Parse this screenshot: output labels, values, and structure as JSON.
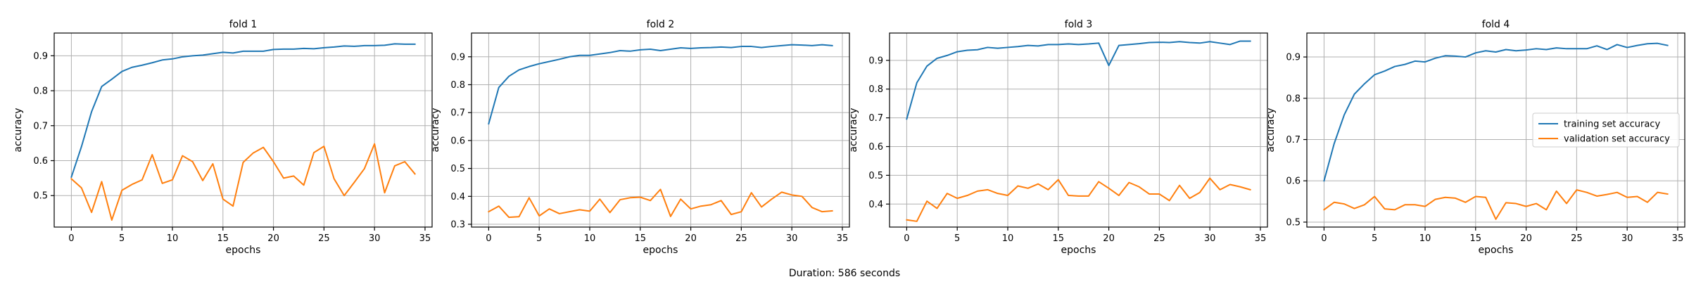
{
  "footer": {
    "duration": "Duration: 586 seconds"
  },
  "legend_labels": [
    "training set accuracy",
    "validation set accuracy"
  ],
  "colors": {
    "training": "#1f77b4",
    "validation": "#ff7f0e",
    "grid": "#b0b0b0"
  },
  "chart_data": [
    {
      "type": "line",
      "title": "fold 1",
      "xlabel": "epochs",
      "ylabel": "accuracy",
      "xlim": [
        -1.7,
        35.7
      ],
      "ylim": [
        0.41,
        0.965
      ],
      "xticks": [
        0,
        5,
        10,
        15,
        20,
        25,
        30,
        35
      ],
      "yticks": [
        0.5,
        0.6,
        0.7,
        0.8,
        0.9
      ],
      "grid": true,
      "legend": "",
      "series": [
        {
          "values": [
            0.553,
            0.64,
            0.74,
            0.812,
            0.833,
            0.855,
            0.867,
            0.873,
            0.88,
            0.888,
            0.891,
            0.897,
            0.9,
            0.902,
            0.906,
            0.91,
            0.908,
            0.913,
            0.913,
            0.913,
            0.918,
            0.919,
            0.919,
            0.921,
            0.92,
            0.923,
            0.925,
            0.928,
            0.927,
            0.929,
            0.929,
            0.93,
            0.934,
            0.933,
            0.933
          ]
        },
        {
          "values": [
            0.548,
            0.522,
            0.452,
            0.54,
            0.43,
            0.515,
            0.532,
            0.545,
            0.617,
            0.535,
            0.545,
            0.614,
            0.597,
            0.543,
            0.591,
            0.49,
            0.47,
            0.595,
            0.622,
            0.638,
            0.597,
            0.55,
            0.556,
            0.53,
            0.623,
            0.641,
            0.548,
            0.5,
            0.538,
            0.577,
            0.648,
            0.508,
            0.585,
            0.597,
            0.562
          ]
        }
      ]
    },
    {
      "type": "line",
      "title": "fold 2",
      "xlabel": "epochs",
      "ylabel": "accuracy",
      "xlim": [
        -1.7,
        35.7
      ],
      "ylim": [
        0.29,
        0.985
      ],
      "xticks": [
        0,
        5,
        10,
        15,
        20,
        25,
        30,
        35
      ],
      "yticks": [
        0.3,
        0.4,
        0.5,
        0.6,
        0.7,
        0.8,
        0.9
      ],
      "grid": true,
      "legend": "",
      "series": [
        {
          "values": [
            0.66,
            0.79,
            0.83,
            0.853,
            0.865,
            0.875,
            0.883,
            0.891,
            0.9,
            0.905,
            0.905,
            0.91,
            0.915,
            0.922,
            0.92,
            0.925,
            0.927,
            0.922,
            0.927,
            0.932,
            0.93,
            0.932,
            0.933,
            0.935,
            0.933,
            0.937,
            0.937,
            0.933,
            0.937,
            0.94,
            0.943,
            0.942,
            0.94,
            0.943,
            0.94
          ]
        },
        {
          "values": [
            0.345,
            0.365,
            0.325,
            0.327,
            0.395,
            0.33,
            0.355,
            0.338,
            0.345,
            0.352,
            0.347,
            0.39,
            0.342,
            0.388,
            0.395,
            0.397,
            0.385,
            0.425,
            0.328,
            0.39,
            0.355,
            0.365,
            0.37,
            0.385,
            0.335,
            0.345,
            0.413,
            0.362,
            0.39,
            0.415,
            0.405,
            0.4,
            0.36,
            0.345,
            0.348
          ]
        }
      ]
    },
    {
      "type": "line",
      "title": "fold 3",
      "xlabel": "epochs",
      "ylabel": "accuracy",
      "xlim": [
        -1.7,
        35.7
      ],
      "ylim": [
        0.32,
        0.995
      ],
      "xticks": [
        0,
        5,
        10,
        15,
        20,
        25,
        30,
        35
      ],
      "yticks": [
        0.4,
        0.5,
        0.6,
        0.7,
        0.8,
        0.9
      ],
      "grid": true,
      "legend": "",
      "series": [
        {
          "values": [
            0.696,
            0.822,
            0.88,
            0.907,
            0.917,
            0.93,
            0.935,
            0.937,
            0.945,
            0.942,
            0.945,
            0.948,
            0.952,
            0.95,
            0.955,
            0.955,
            0.957,
            0.955,
            0.957,
            0.96,
            0.882,
            0.952,
            0.955,
            0.958,
            0.962,
            0.963,
            0.962,
            0.965,
            0.962,
            0.96,
            0.965,
            0.96,
            0.955,
            0.967,
            0.967
          ]
        },
        {
          "values": [
            0.345,
            0.34,
            0.41,
            0.385,
            0.437,
            0.42,
            0.43,
            0.445,
            0.45,
            0.437,
            0.43,
            0.463,
            0.455,
            0.47,
            0.45,
            0.485,
            0.43,
            0.428,
            0.428,
            0.478,
            0.455,
            0.43,
            0.475,
            0.46,
            0.435,
            0.435,
            0.412,
            0.465,
            0.42,
            0.44,
            0.49,
            0.45,
            0.468,
            0.46,
            0.45
          ]
        }
      ]
    },
    {
      "type": "line",
      "title": "fold 4",
      "xlabel": "epochs",
      "ylabel": "accuracy",
      "xlim": [
        -1.7,
        35.7
      ],
      "ylim": [
        0.488,
        0.958
      ],
      "xticks": [
        0,
        5,
        10,
        15,
        20,
        25,
        30,
        35
      ],
      "yticks": [
        0.5,
        0.6,
        0.7,
        0.8,
        0.9
      ],
      "grid": true,
      "legend": "center right",
      "series": [
        {
          "name": "training set accuracy",
          "values": [
            0.6,
            0.69,
            0.76,
            0.81,
            0.835,
            0.857,
            0.866,
            0.877,
            0.882,
            0.89,
            0.888,
            0.897,
            0.903,
            0.902,
            0.9,
            0.91,
            0.915,
            0.912,
            0.918,
            0.915,
            0.917,
            0.92,
            0.918,
            0.922,
            0.92,
            0.92,
            0.92,
            0.927,
            0.918,
            0.93,
            0.923,
            0.928,
            0.932,
            0.933,
            0.928
          ]
        },
        {
          "name": "validation set accuracy",
          "values": [
            0.53,
            0.548,
            0.544,
            0.533,
            0.542,
            0.562,
            0.532,
            0.53,
            0.542,
            0.542,
            0.538,
            0.555,
            0.56,
            0.558,
            0.548,
            0.562,
            0.56,
            0.507,
            0.547,
            0.545,
            0.538,
            0.545,
            0.53,
            0.575,
            0.545,
            0.578,
            0.572,
            0.563,
            0.567,
            0.572,
            0.56,
            0.562,
            0.548,
            0.572,
            0.568
          ]
        }
      ]
    }
  ]
}
